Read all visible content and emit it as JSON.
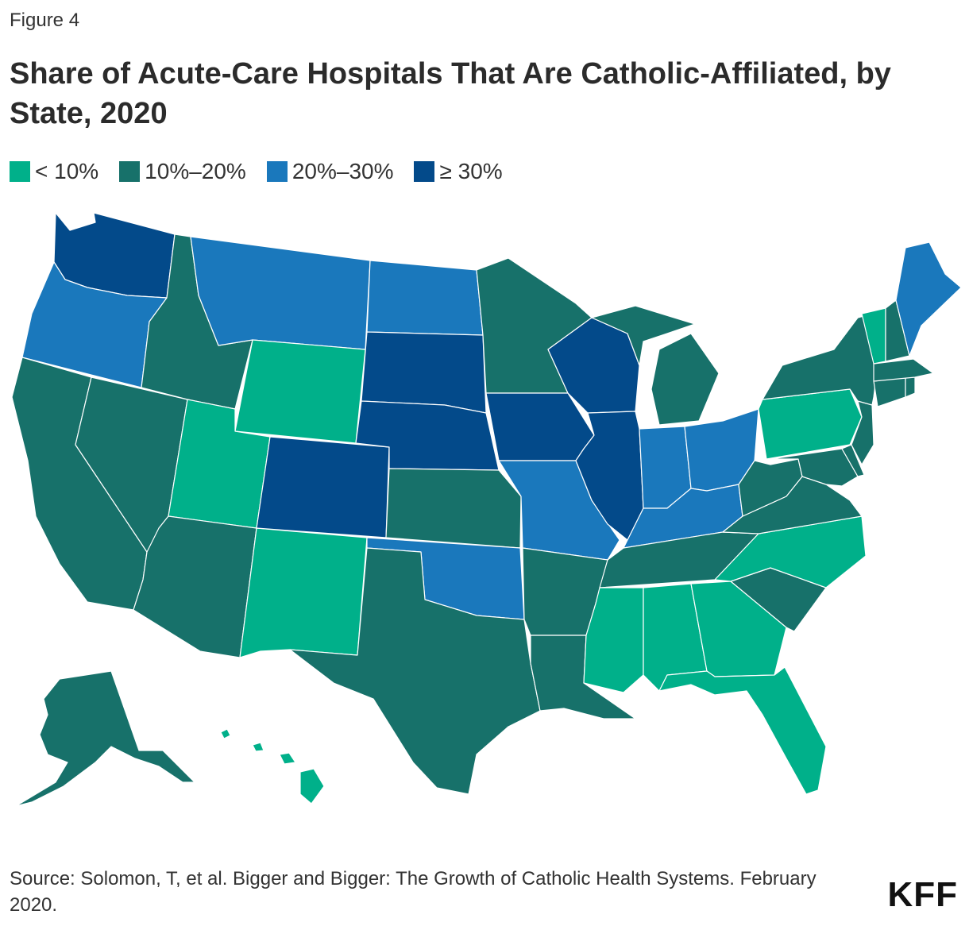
{
  "figure_label": "Figure 4",
  "title": "Share of Acute-Care Hospitals That Are Catholic-Affiliated, by State, 2020",
  "legend": [
    {
      "label": "< 10%",
      "color": "#00b08a"
    },
    {
      "label": "10%–20%",
      "color": "#17716a"
    },
    {
      "label": "20%–30%",
      "color": "#1a78bc"
    },
    {
      "label": "≥ 30%",
      "color": "#034a8a"
    }
  ],
  "map": {
    "category_by_state": {
      "WA": "≥ 30%",
      "OR": "20%–30%",
      "CA": "10%–20%",
      "NV": "10%–20%",
      "ID": "10%–20%",
      "MT": "20%–30%",
      "WY": "< 10%",
      "UT": "< 10%",
      "AZ": "10%–20%",
      "NM": "< 10%",
      "CO": "≥ 30%",
      "ND": "20%–30%",
      "SD": "≥ 30%",
      "NE": "≥ 30%",
      "KS": "10%–20%",
      "OK": "20%–30%",
      "TX": "10%–20%",
      "MN": "10%–20%",
      "IA": "≥ 30%",
      "MO": "20%–30%",
      "AR": "10%–20%",
      "LA": "10%–20%",
      "WI": "≥ 30%",
      "IL": "≥ 30%",
      "MI": "10%–20%",
      "IN": "20%–30%",
      "OH": "20%–30%",
      "KY": "20%–30%",
      "TN": "10%–20%",
      "MS": "< 10%",
      "AL": "< 10%",
      "GA": "< 10%",
      "FL": "< 10%",
      "SC": "10%–20%",
      "NC": "< 10%",
      "VA": "10%–20%",
      "WV": "10%–20%",
      "MD": "10%–20%",
      "DE": "10%–20%",
      "NJ": "10%–20%",
      "PA": "< 10%",
      "NY": "10%–20%",
      "CT": "10%–20%",
      "RI": "10%–20%",
      "MA": "10%–20%",
      "VT": "< 10%",
      "NH": "10%–20%",
      "ME": "20%–30%",
      "AK": "10%–20%",
      "HI": "< 10%"
    }
  },
  "source": "Source: Solomon, T, et al. Bigger and Bigger: The Growth of Catholic Health Systems. February 2020.",
  "logo": "KFF"
}
